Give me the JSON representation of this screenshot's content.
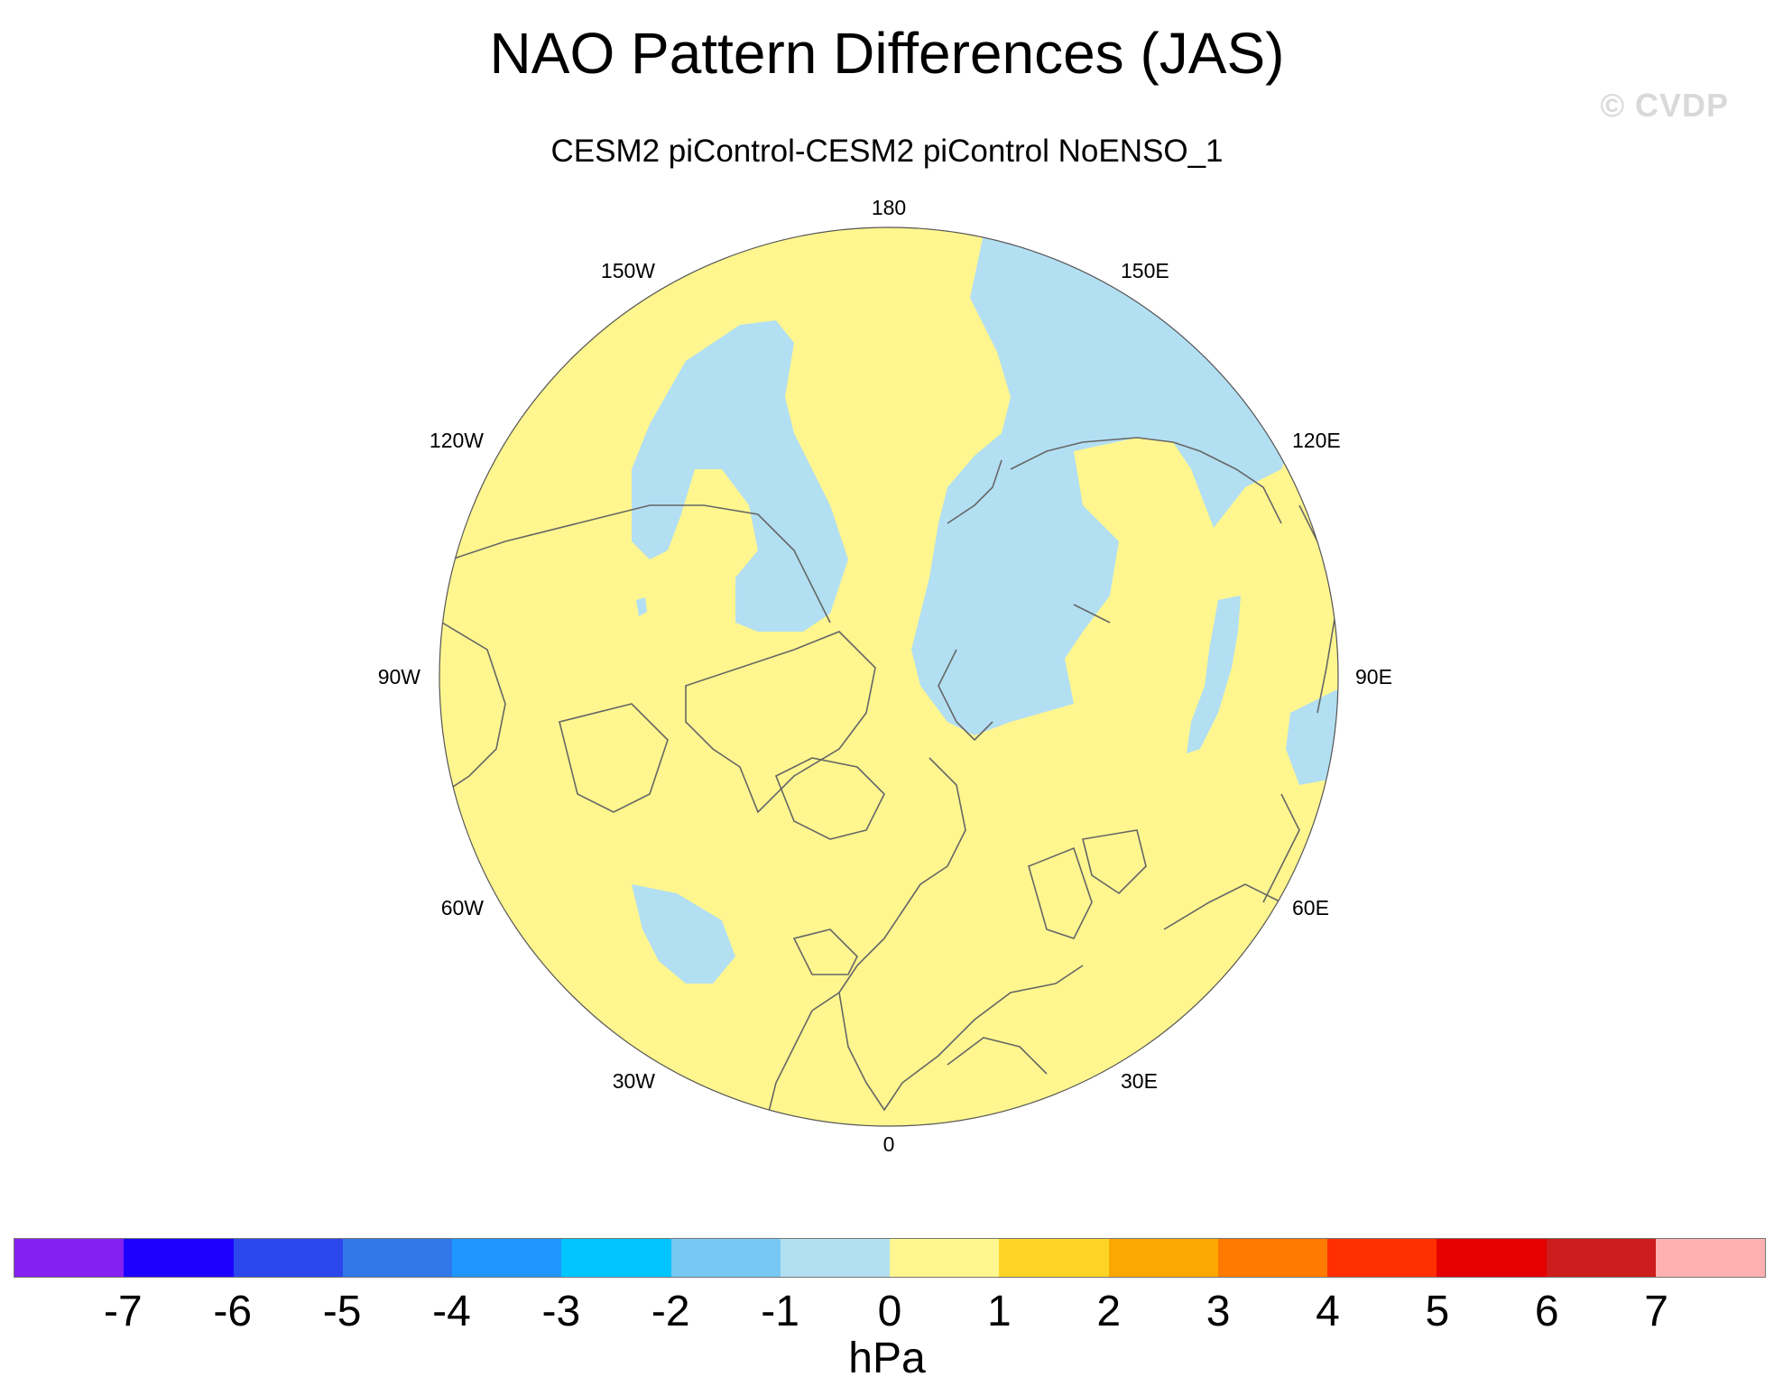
{
  "title": "NAO Pattern Differences (JAS)",
  "subtitle": "CESM2 piControl-CESM2 piControl NoENSO_1",
  "watermark": "© CVDP",
  "map": {
    "projection": "north-polar-stereographic",
    "longitude_labels": [
      "180",
      "150E",
      "120E",
      "90E",
      "60E",
      "30E",
      "0",
      "30W",
      "60W",
      "90W",
      "120W",
      "150W"
    ],
    "fill_positive_0_1": "#fff68f",
    "fill_negative_-1_0": "#b3dff2"
  },
  "colorbar": {
    "colors": [
      "#8420f0",
      "#1e00ff",
      "#2b47ec",
      "#3277ea",
      "#1e96ff",
      "#00c5ff",
      "#77c8f2",
      "#b3dff2",
      "#fff68f",
      "#fdd426",
      "#fda800",
      "#ff7a00",
      "#ff2f00",
      "#e60000",
      "#cd1c1c",
      "#ffb1b1"
    ],
    "tick_labels": [
      "-7",
      "-6",
      "-5",
      "-4",
      "-3",
      "-2",
      "-1",
      "0",
      "1",
      "2",
      "3",
      "4",
      "5",
      "6",
      "7"
    ],
    "units": "hPa"
  }
}
